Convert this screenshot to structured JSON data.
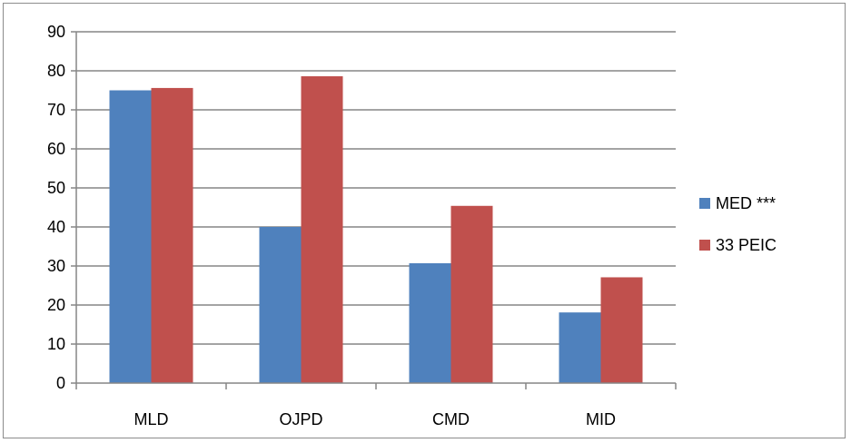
{
  "chart_data": {
    "type": "bar",
    "categories": [
      "MLD",
      "OJPD",
      "CMD",
      "MID"
    ],
    "series": [
      {
        "name": "MED ***",
        "values": [
          75,
          40,
          30.7,
          18.1
        ],
        "color": "#4f81bd"
      },
      {
        "name": "33 PEIC",
        "values": [
          75.6,
          78.6,
          45.4,
          27.1
        ],
        "color": "#c0504d"
      }
    ],
    "title": "",
    "xlabel": "",
    "ylabel": "",
    "ylim": [
      0,
      90
    ],
    "yticks": [
      0,
      10,
      20,
      30,
      40,
      50,
      60,
      70,
      80,
      90
    ],
    "grid": true,
    "legend_position": "right"
  }
}
